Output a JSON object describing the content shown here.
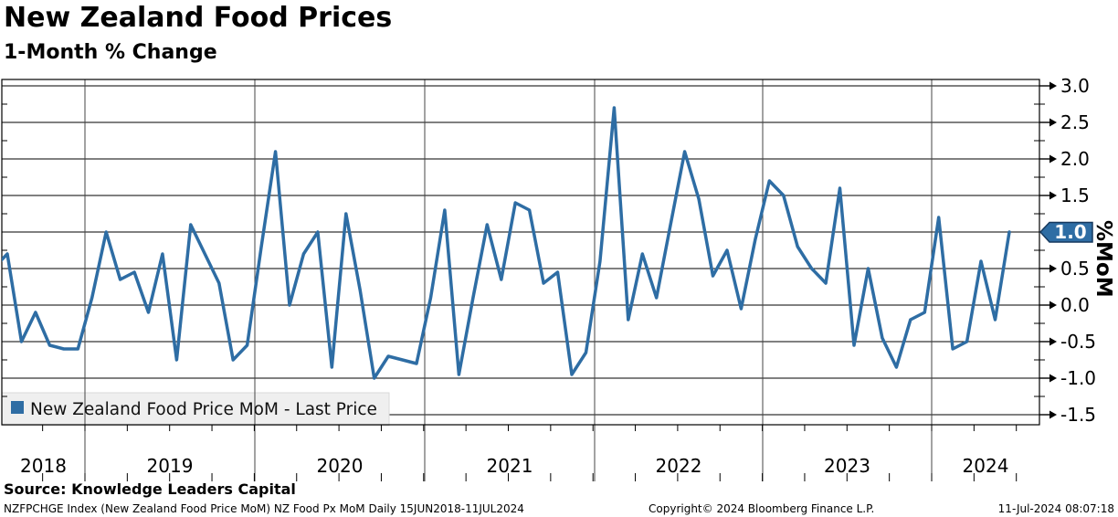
{
  "header": {
    "title": "New Zealand Food Prices",
    "subtitle": "1-Month % Change"
  },
  "legend": {
    "label": "New Zealand Food Price MoM - Last Price",
    "swatch_color": "#2e6da4"
  },
  "last_price": {
    "value": "1.0",
    "unit_label": "%MoM"
  },
  "source": {
    "text": "Source: Knowledge Leaders Capital"
  },
  "footer": {
    "left": "NZFPCHGE Index (New Zealand Food Price MoM) NZ Food Px MoM  Daily 15JUN2018-11JUL2024",
    "center": "Copyright© 2024 Bloomberg Finance L.P.",
    "right": "11-Jul-2024 08:07:18"
  },
  "colors": {
    "line": "#2e6da4",
    "marker_fill": "#2e6da4",
    "marker_border": "#16395e",
    "marker_text": "#ffffff",
    "grid": "#000000",
    "year_line": "#444444",
    "legend_bg": "#efefef",
    "legend_border": "#d9d9d9",
    "text": "#000000"
  },
  "chart_data": {
    "type": "line",
    "title": "New Zealand Food Prices",
    "subtitle": "1-Month % Change",
    "ylabel": "%MoM",
    "ylim": [
      -1.5,
      3.0
    ],
    "ytick_step": 0.5,
    "yticks": [
      3.0,
      2.5,
      2.0,
      1.5,
      1.0,
      0.5,
      0.0,
      -0.5,
      -1.0,
      -1.5
    ],
    "grid": true,
    "legend_position": "bottom-left",
    "x_range_label": "15JUN2018-11JUL2024",
    "year_labels": [
      "2018",
      "2019",
      "2020",
      "2021",
      "2022",
      "2023",
      "2024"
    ],
    "last_price": 1.0,
    "series": [
      {
        "name": "New Zealand Food Price MoM - Last Price",
        "x": [
          "2018-06",
          "2018-07",
          "2018-08",
          "2018-09",
          "2018-10",
          "2018-11",
          "2018-12",
          "2019-01",
          "2019-02",
          "2019-03",
          "2019-04",
          "2019-05",
          "2019-06",
          "2019-07",
          "2019-08",
          "2019-09",
          "2019-10",
          "2019-11",
          "2019-12",
          "2020-01",
          "2020-02",
          "2020-03",
          "2020-04",
          "2020-05",
          "2020-06",
          "2020-07",
          "2020-08",
          "2020-09",
          "2020-10",
          "2020-11",
          "2020-12",
          "2021-01",
          "2021-02",
          "2021-03",
          "2021-04",
          "2021-05",
          "2021-06",
          "2021-07",
          "2021-08",
          "2021-09",
          "2021-10",
          "2021-11",
          "2021-12",
          "2022-01",
          "2022-02",
          "2022-03",
          "2022-04",
          "2022-05",
          "2022-06",
          "2022-07",
          "2022-08",
          "2022-09",
          "2022-10",
          "2022-11",
          "2022-12",
          "2023-01",
          "2023-02",
          "2023-03",
          "2023-04",
          "2023-05",
          "2023-06",
          "2023-07",
          "2023-08",
          "2023-09",
          "2023-10",
          "2023-11",
          "2023-12",
          "2024-01",
          "2024-02",
          "2024-03",
          "2024-04",
          "2024-05",
          "2024-06"
        ],
        "values": [
          0.5,
          0.7,
          -0.5,
          -0.1,
          -0.55,
          -0.6,
          -0.6,
          0.1,
          1.0,
          0.35,
          0.45,
          -0.1,
          0.7,
          -0.75,
          1.1,
          0.7,
          0.3,
          -0.75,
          -0.55,
          0.8,
          2.1,
          0.0,
          0.7,
          1.0,
          -0.85,
          1.25,
          0.2,
          -1.0,
          -0.7,
          -0.75,
          -0.8,
          0.1,
          1.3,
          -0.95,
          0.1,
          1.1,
          0.35,
          1.4,
          1.3,
          0.3,
          0.45,
          -0.95,
          -0.65,
          0.6,
          2.7,
          -0.2,
          0.7,
          0.1,
          1.1,
          2.1,
          1.45,
          0.4,
          0.75,
          -0.05,
          0.9,
          1.7,
          1.5,
          0.8,
          0.5,
          0.3,
          1.6,
          -0.55,
          0.5,
          -0.45,
          -0.85,
          -0.2,
          -0.1,
          1.2,
          -0.6,
          -0.5,
          0.6,
          -0.2,
          1.0
        ]
      }
    ]
  }
}
